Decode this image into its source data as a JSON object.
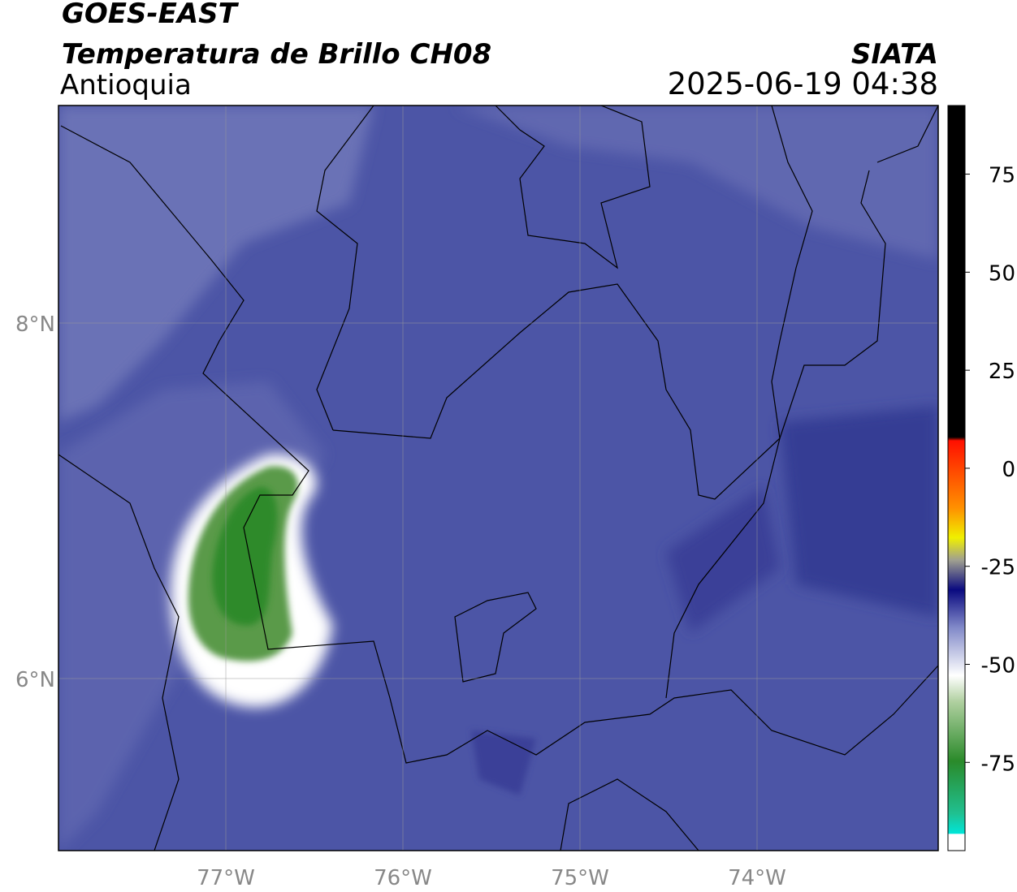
{
  "header": {
    "title": "GOES-EAST",
    "subtitle": "Temperatura de Brillo CH08",
    "region": "Antioquia",
    "source": "SIATA",
    "timestamp": "2025-06-19 04:38"
  },
  "map": {
    "xlim": [
      -77.945,
      -72.977
    ],
    "ylim": [
      5.032,
      9.224
    ],
    "xticks": [
      {
        "value": -77,
        "label": "77°W"
      },
      {
        "value": -76,
        "label": "76°W"
      },
      {
        "value": -75,
        "label": "75°W"
      },
      {
        "value": -74,
        "label": "74°W"
      }
    ],
    "yticks": [
      {
        "value": 8,
        "label": "8°N"
      },
      {
        "value": 6,
        "label": "6°N"
      }
    ],
    "grid": true
  },
  "colorbar": {
    "lim": [
      -97.5,
      92.5
    ],
    "ticks": [
      75,
      50,
      25,
      0,
      -25,
      -50,
      -75
    ]
  }
}
